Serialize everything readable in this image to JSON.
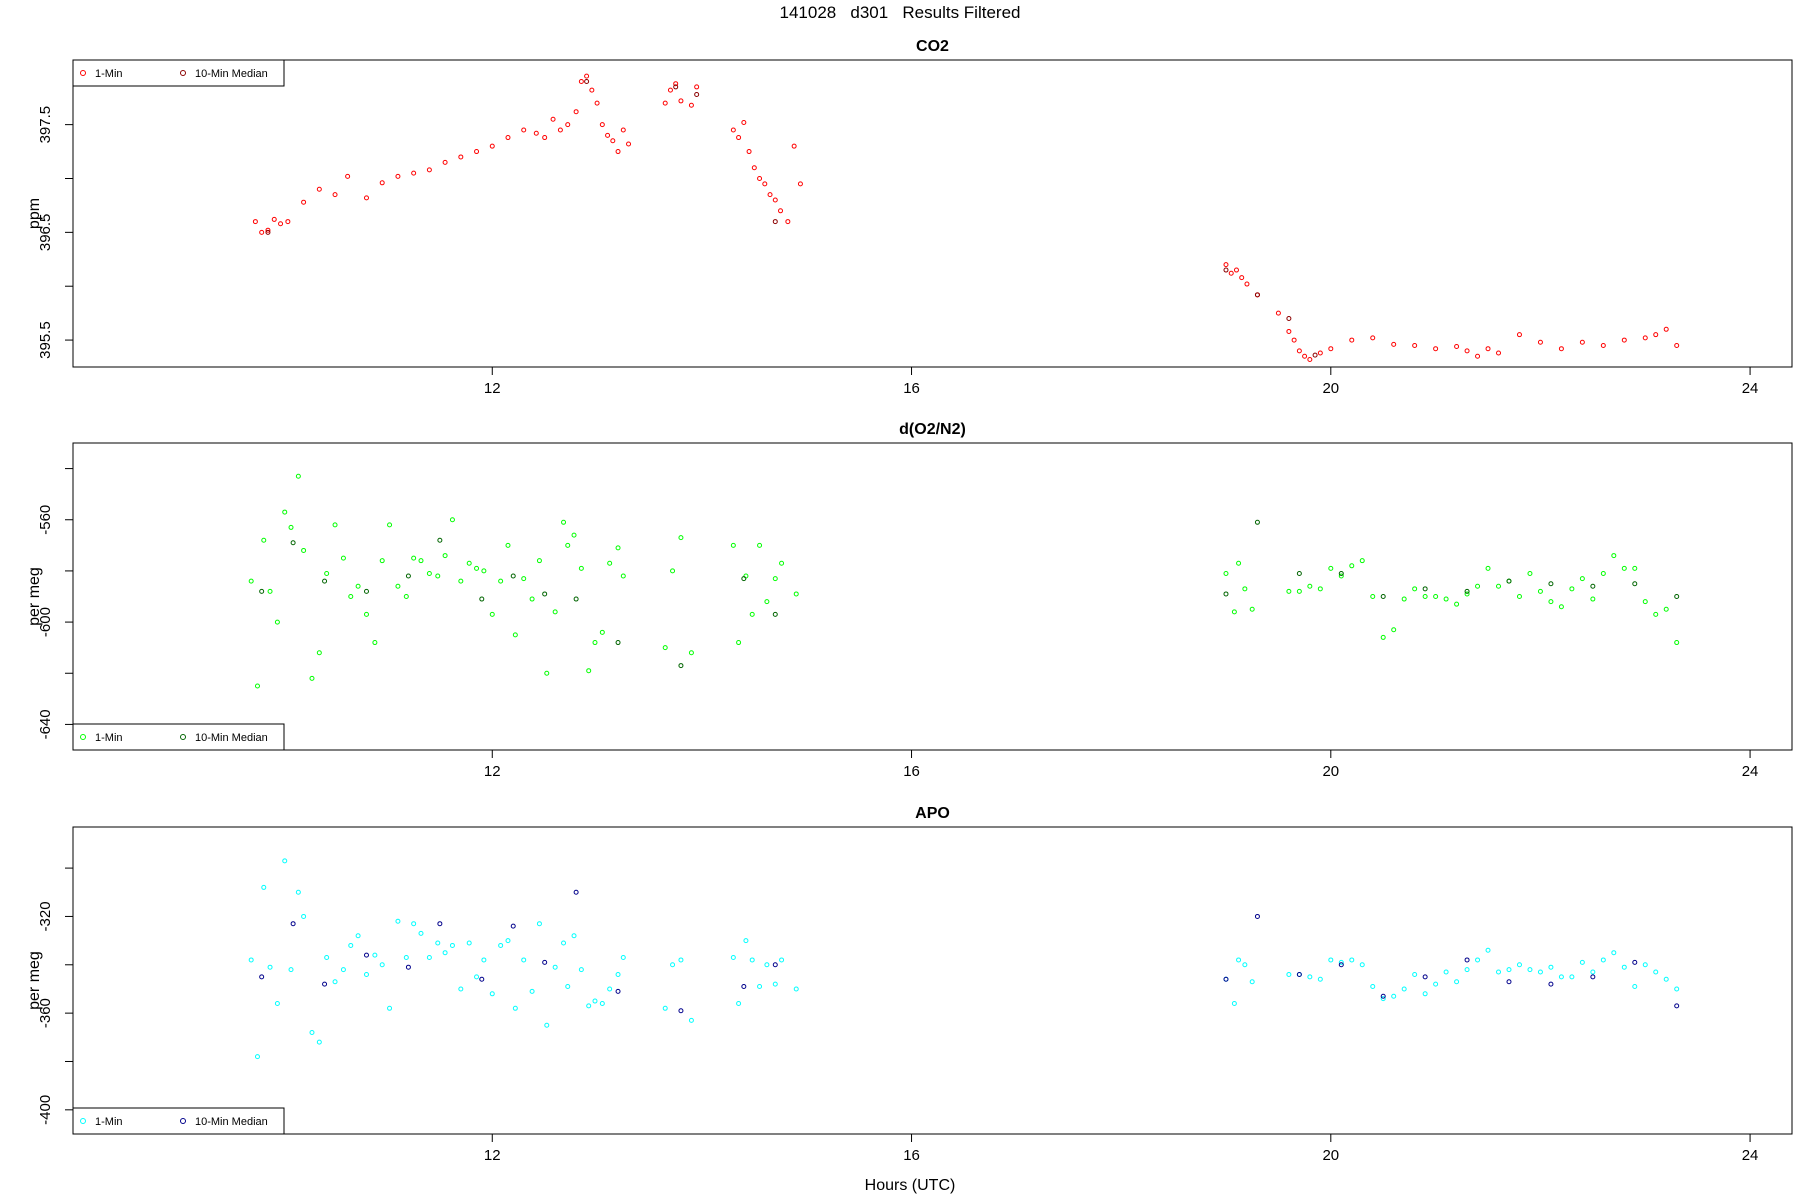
{
  "figure": {
    "suptitle": "141028   d301   Results Filtered",
    "xlabel": "Hours (UTC)"
  },
  "chart_data": [
    {
      "type": "scatter",
      "title": "CO2",
      "ylabel": "ppm",
      "xlim": [
        8.0,
        24.4
      ],
      "ylim": [
        395.25,
        398.1
      ],
      "xticks": [
        12,
        16,
        20,
        24
      ],
      "xtick_labels": [
        "12",
        "16",
        "20",
        "24"
      ],
      "yticks": [
        395.5,
        396.0,
        396.5,
        397.0,
        397.5
      ],
      "ytick_labels": [
        "395.5",
        "",
        "396.5",
        "",
        "397.5"
      ],
      "legend_position": "top-left",
      "series": [
        {
          "name": "1-Min",
          "color": "#ff0000",
          "x": [
            9.74,
            9.8,
            9.86,
            9.92,
            9.98,
            10.05,
            10.2,
            10.35,
            10.5,
            10.62,
            10.8,
            10.95,
            11.1,
            11.25,
            11.4,
            11.55,
            11.7,
            11.85,
            12.0,
            12.15,
            12.3,
            12.42,
            12.5,
            12.58,
            12.65,
            12.72,
            12.8,
            12.85,
            12.9,
            12.95,
            13.0,
            13.05,
            13.1,
            13.15,
            13.2,
            13.25,
            13.3,
            13.65,
            13.7,
            13.75,
            13.8,
            13.9,
            13.95,
            14.3,
            14.35,
            14.4,
            14.45,
            14.5,
            14.55,
            14.6,
            14.65,
            14.7,
            14.75,
            14.82,
            14.88,
            14.94,
            19.0,
            19.05,
            19.1,
            19.15,
            19.2,
            19.3,
            19.5,
            19.6,
            19.65,
            19.7,
            19.75,
            19.8,
            19.9,
            20.0,
            20.2,
            20.4,
            20.6,
            20.8,
            21.0,
            21.2,
            21.3,
            21.4,
            21.5,
            21.6,
            21.8,
            22.0,
            22.2,
            22.4,
            22.6,
            22.8,
            23.0,
            23.1,
            23.2,
            23.3
          ],
          "y": [
            396.6,
            396.5,
            396.52,
            396.62,
            396.58,
            396.6,
            396.78,
            396.9,
            396.85,
            397.02,
            396.82,
            396.96,
            397.02,
            397.05,
            397.08,
            397.15,
            397.2,
            397.25,
            397.3,
            397.38,
            397.45,
            397.42,
            397.38,
            397.55,
            397.45,
            397.5,
            397.62,
            397.9,
            397.95,
            397.82,
            397.7,
            397.5,
            397.4,
            397.35,
            397.25,
            397.45,
            397.32,
            397.7,
            397.82,
            397.88,
            397.72,
            397.68,
            397.85,
            397.45,
            397.38,
            397.52,
            397.25,
            397.1,
            397.0,
            396.95,
            396.85,
            396.8,
            396.7,
            396.6,
            397.3,
            396.95,
            396.2,
            396.12,
            396.15,
            396.08,
            396.02,
            395.92,
            395.75,
            395.58,
            395.5,
            395.4,
            395.35,
            395.32,
            395.38,
            395.42,
            395.5,
            395.52,
            395.46,
            395.45,
            395.42,
            395.44,
            395.4,
            395.35,
            395.42,
            395.38,
            395.55,
            395.48,
            395.42,
            395.48,
            395.45,
            395.5,
            395.52,
            395.55,
            395.6,
            395.45
          ]
        },
        {
          "name": "10-Min Median",
          "color": "#8b0000",
          "x": [
            9.86,
            12.9,
            13.75,
            13.95,
            14.7,
            19.0,
            19.3,
            19.6,
            19.85
          ],
          "y": [
            396.5,
            397.9,
            397.85,
            397.78,
            396.6,
            396.15,
            395.92,
            395.7,
            395.36
          ]
        }
      ]
    },
    {
      "type": "scatter",
      "title": "d(O2/N2)",
      "ylabel": "per meg",
      "xlim": [
        8.0,
        24.4
      ],
      "ylim": [
        -650,
        -530
      ],
      "xticks": [
        12,
        16,
        20,
        24
      ],
      "xtick_labels": [
        "12",
        "16",
        "20",
        "24"
      ],
      "yticks": [
        -640,
        -620,
        -600,
        -580,
        -560,
        -540
      ],
      "ytick_labels": [
        "-640",
        "",
        "-600",
        "",
        "-560",
        ""
      ],
      "legend_position": "bottom-left",
      "series": [
        {
          "name": "1-Min",
          "color": "#00ff00",
          "x": [
            9.7,
            9.76,
            9.82,
            9.88,
            9.95,
            10.02,
            10.08,
            10.15,
            10.2,
            10.28,
            10.35,
            10.42,
            10.5,
            10.58,
            10.65,
            10.72,
            10.8,
            10.88,
            10.95,
            11.02,
            11.1,
            11.18,
            11.25,
            11.32,
            11.4,
            11.48,
            11.55,
            11.62,
            11.7,
            11.78,
            11.85,
            11.92,
            12.0,
            12.08,
            12.15,
            12.22,
            12.3,
            12.38,
            12.45,
            12.52,
            12.6,
            12.68,
            12.72,
            12.78,
            12.85,
            12.92,
            12.98,
            13.05,
            13.12,
            13.2,
            13.25,
            13.65,
            13.72,
            13.8,
            13.9,
            14.3,
            14.35,
            14.42,
            14.48,
            14.55,
            14.62,
            14.7,
            14.76,
            14.9,
            19.0,
            19.08,
            19.12,
            19.18,
            19.25,
            19.6,
            19.7,
            19.8,
            19.9,
            20.0,
            20.1,
            20.2,
            20.3,
            20.4,
            20.5,
            20.6,
            20.7,
            20.8,
            20.9,
            21.0,
            21.1,
            21.2,
            21.3,
            21.4,
            21.5,
            21.6,
            21.7,
            21.8,
            21.9,
            22.0,
            22.1,
            22.2,
            22.3,
            22.4,
            22.5,
            22.6,
            22.7,
            22.8,
            22.9,
            23.0,
            23.1,
            23.2,
            23.3
          ],
          "y": [
            -584,
            -625,
            -568,
            -588,
            -600,
            -557,
            -563,
            -543,
            -572,
            -622,
            -612,
            -581,
            -562,
            -575,
            -590,
            -586,
            -597,
            -608,
            -576,
            -562,
            -586,
            -590,
            -575,
            -576,
            -581,
            -582,
            -574,
            -560,
            -584,
            -577,
            -579,
            -580,
            -597,
            -584,
            -570,
            -605,
            -583,
            -591,
            -576,
            -620,
            -596,
            -561,
            -570,
            -566,
            -579,
            -619,
            -608,
            -604,
            -577,
            -571,
            -582,
            -610,
            -580,
            -567,
            -612,
            -570,
            -608,
            -582,
            -597,
            -570,
            -592,
            -583,
            -577,
            -589,
            -581,
            -596,
            -577,
            -587,
            -595,
            -588,
            -588,
            -586,
            -587,
            -579,
            -582,
            -578,
            -576,
            -590,
            -606,
            -603,
            -591,
            -587,
            -590,
            -590,
            -591,
            -593,
            -589,
            -586,
            -579,
            -586,
            -584,
            -590,
            -581,
            -588,
            -592,
            -594,
            -587,
            -583,
            -591,
            -581,
            -574,
            -579,
            -579,
            -592,
            -597,
            -595,
            -608
          ]
        },
        {
          "name": "10-Min Median",
          "color": "#006400",
          "x": [
            9.8,
            10.1,
            10.4,
            10.8,
            11.2,
            11.5,
            11.9,
            12.2,
            12.5,
            12.8,
            13.2,
            13.8,
            14.4,
            14.7,
            19.0,
            19.3,
            19.7,
            20.1,
            20.5,
            20.9,
            21.3,
            21.7,
            22.1,
            22.5,
            22.9,
            23.3
          ],
          "y": [
            -588,
            -569,
            -584,
            -588,
            -582,
            -568,
            -591,
            -582,
            -589,
            -591,
            -608,
            -617,
            -583,
            -597,
            -589,
            -561,
            -581,
            -581,
            -590,
            -587,
            -588,
            -584,
            -585,
            -586,
            -585,
            -590
          ]
        }
      ]
    },
    {
      "type": "scatter",
      "title": "APO",
      "ylabel": "per meg",
      "xlim": [
        8.0,
        24.4
      ],
      "ylim": [
        -410,
        -283
      ],
      "xticks": [
        12,
        16,
        20,
        24
      ],
      "xtick_labels": [
        "12",
        "16",
        "20",
        "24"
      ],
      "yticks": [
        -400,
        -380,
        -360,
        -340,
        -320,
        -300
      ],
      "ytick_labels": [
        "-400",
        "",
        "-360",
        "",
        "-320",
        ""
      ],
      "legend_position": "bottom-left",
      "series": [
        {
          "name": "1-Min",
          "color": "#00ffff",
          "x": [
            9.7,
            9.76,
            9.82,
            9.88,
            9.95,
            10.02,
            10.08,
            10.15,
            10.2,
            10.28,
            10.35,
            10.42,
            10.5,
            10.58,
            10.65,
            10.72,
            10.8,
            10.88,
            10.95,
            11.02,
            11.1,
            11.18,
            11.25,
            11.32,
            11.4,
            11.48,
            11.55,
            11.62,
            11.7,
            11.78,
            11.85,
            11.92,
            12.0,
            12.08,
            12.15,
            12.22,
            12.3,
            12.38,
            12.45,
            12.52,
            12.6,
            12.68,
            12.72,
            12.78,
            12.85,
            12.92,
            12.98,
            13.05,
            13.12,
            13.2,
            13.25,
            13.65,
            13.72,
            13.8,
            13.9,
            14.3,
            14.35,
            14.42,
            14.48,
            14.55,
            14.62,
            14.7,
            14.76,
            14.9,
            19.0,
            19.08,
            19.12,
            19.18,
            19.25,
            19.6,
            19.7,
            19.8,
            19.9,
            20.0,
            20.1,
            20.2,
            20.3,
            20.4,
            20.5,
            20.6,
            20.7,
            20.8,
            20.9,
            21.0,
            21.1,
            21.2,
            21.3,
            21.4,
            21.5,
            21.6,
            21.7,
            21.8,
            21.9,
            22.0,
            22.1,
            22.2,
            22.3,
            22.4,
            22.5,
            22.6,
            22.7,
            22.8,
            22.9,
            23.0,
            23.1,
            23.2,
            23.3
          ],
          "y": [
            -338,
            -378,
            -308,
            -341,
            -356,
            -297,
            -342,
            -310,
            -320,
            -368,
            -372,
            -337,
            -347,
            -342,
            -332,
            -328,
            -344,
            -336,
            -340,
            -358,
            -322,
            -337,
            -323,
            -327,
            -337,
            -331,
            -335,
            -332,
            -350,
            -331,
            -345,
            -338,
            -352,
            -332,
            -330,
            -358,
            -338,
            -351,
            -323,
            -365,
            -341,
            -331,
            -349,
            -328,
            -342,
            -357,
            -355,
            -356,
            -350,
            -344,
            -337,
            -358,
            -340,
            -338,
            -363,
            -337,
            -356,
            -330,
            -338,
            -349,
            -340,
            -348,
            -338,
            -350,
            -346,
            -356,
            -338,
            -340,
            -347,
            -344,
            -344,
            -345,
            -346,
            -338,
            -339,
            -338,
            -340,
            -349,
            -354,
            -353,
            -350,
            -344,
            -352,
            -348,
            -343,
            -347,
            -342,
            -338,
            -334,
            -343,
            -342,
            -340,
            -342,
            -343,
            -341,
            -345,
            -345,
            -339,
            -343,
            -338,
            -335,
            -341,
            -349,
            -340,
            -343,
            -346,
            -350
          ]
        },
        {
          "name": "10-Min Median",
          "color": "#00008b",
          "x": [
            9.8,
            10.1,
            10.4,
            10.8,
            11.2,
            11.5,
            11.9,
            12.2,
            12.5,
            12.8,
            13.2,
            13.8,
            14.4,
            14.7,
            19.0,
            19.3,
            19.7,
            20.1,
            20.5,
            20.9,
            21.3,
            21.7,
            22.1,
            22.5,
            22.9,
            23.3
          ],
          "y": [
            -345,
            -323,
            -348,
            -336,
            -341,
            -323,
            -346,
            -324,
            -339,
            -310,
            -351,
            -359,
            -349,
            -340,
            -346,
            -320,
            -344,
            -340,
            -353,
            -345,
            -338,
            -347,
            -348,
            -345,
            -339,
            -357
          ]
        }
      ]
    }
  ]
}
